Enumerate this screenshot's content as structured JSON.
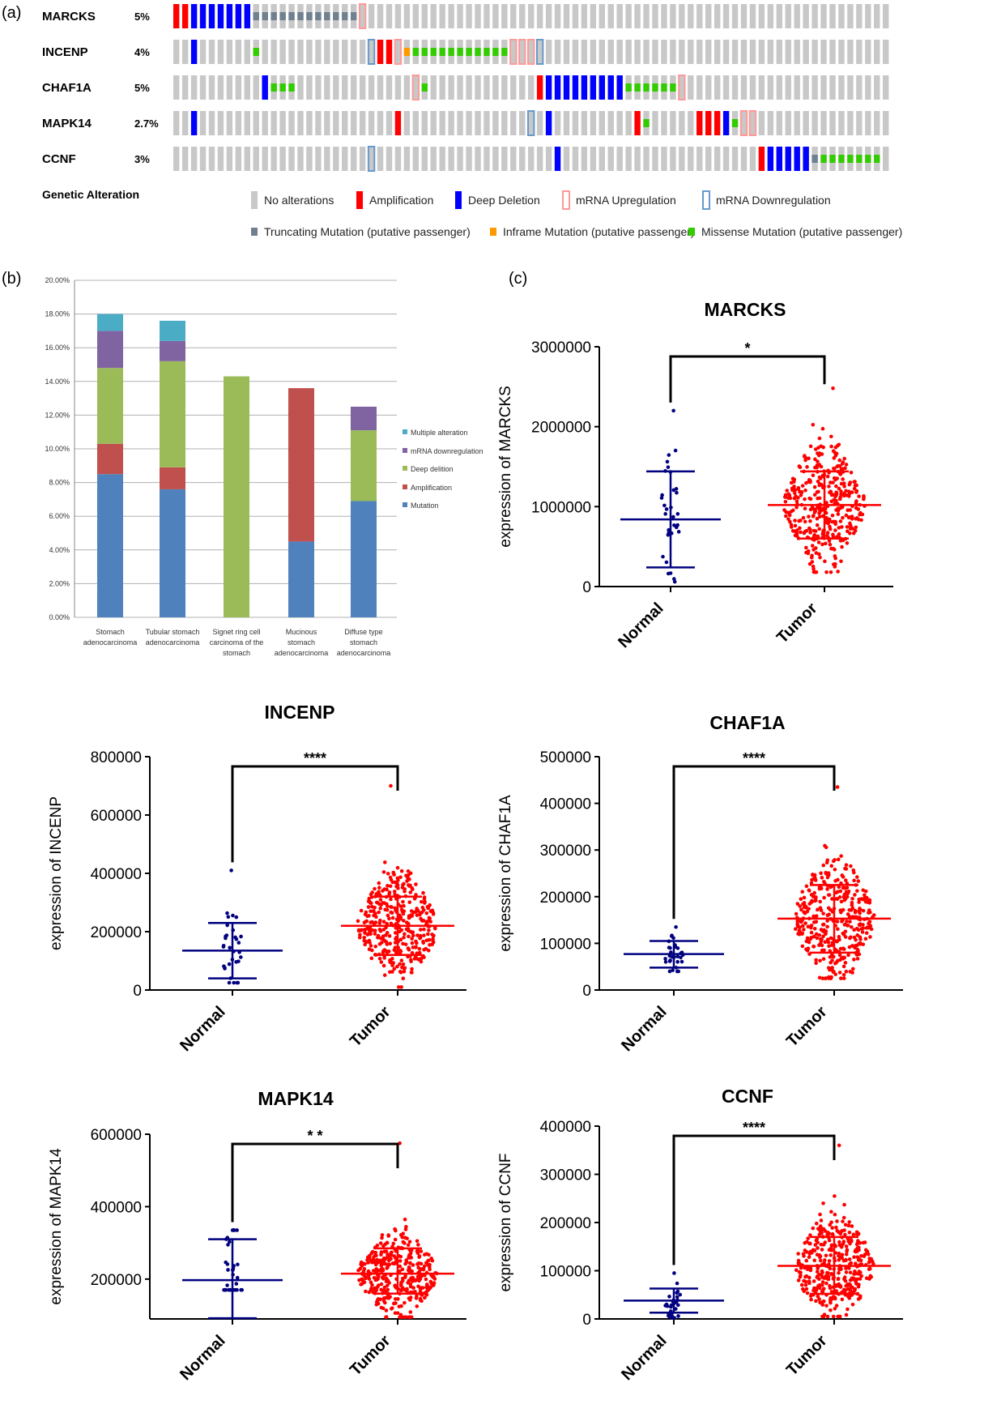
{
  "panel_a": {
    "label": "(a)",
    "genes": [
      {
        "name": "MARCKS",
        "pct": "5%"
      },
      {
        "name": "INCENP",
        "pct": "4%"
      },
      {
        "name": "CHAF1A",
        "pct": "5%"
      },
      {
        "name": "MAPK14",
        "pct": "2.7%"
      },
      {
        "name": "CCNF",
        "pct": "3%"
      }
    ],
    "legend_title": "Genetic Alteration",
    "legend": [
      {
        "key": "none",
        "label": "No alterations"
      },
      {
        "key": "amp",
        "label": "Amplification"
      },
      {
        "key": "del",
        "label": "Deep Deletion"
      },
      {
        "key": "up",
        "label": "mRNA Upregulation"
      },
      {
        "key": "down",
        "label": "mRNA Downregulation"
      },
      {
        "key": "trunc",
        "label": "Truncating Mutation (putative passenger)"
      },
      {
        "key": "inframe",
        "label": "Inframe Mutation (putative passenger)"
      },
      {
        "key": "missense",
        "label": "Missense Mutation (putative passenger)"
      }
    ],
    "colors": {
      "none": "#c8c8c8",
      "amp": "#ff0000",
      "del": "#0000ff",
      "up": "#ff9999",
      "down": "#6699cc",
      "trunc": "#708090",
      "inframe": "#ff9900",
      "missense": "#33cc00"
    },
    "tracks": [
      [
        [
          0,
          "amp"
        ],
        [
          1,
          "amp"
        ],
        [
          2,
          "del"
        ],
        [
          3,
          "del"
        ],
        [
          4,
          "del"
        ],
        [
          5,
          "del"
        ],
        [
          6,
          "del"
        ],
        [
          7,
          "del"
        ],
        [
          8,
          "del"
        ],
        [
          9,
          "trunc"
        ],
        [
          10,
          "trunc"
        ],
        [
          11,
          "trunc"
        ],
        [
          12,
          "trunc"
        ],
        [
          13,
          "trunc"
        ],
        [
          14,
          "trunc"
        ],
        [
          15,
          "trunc"
        ],
        [
          16,
          "trunc"
        ],
        [
          17,
          "trunc"
        ],
        [
          18,
          "trunc"
        ],
        [
          19,
          "trunc"
        ],
        [
          20,
          "trunc"
        ],
        [
          21,
          "up"
        ]
      ],
      [
        [
          2,
          "del"
        ],
        [
          9,
          "missense"
        ],
        [
          22,
          "down"
        ],
        [
          23,
          "amp"
        ],
        [
          24,
          "amp"
        ],
        [
          25,
          "up"
        ],
        [
          26,
          "inframe"
        ],
        [
          27,
          "missense"
        ],
        [
          28,
          "missense"
        ],
        [
          29,
          "missense"
        ],
        [
          30,
          "missense"
        ],
        [
          31,
          "missense"
        ],
        [
          32,
          "missense"
        ],
        [
          33,
          "missense"
        ],
        [
          34,
          "missense"
        ],
        [
          35,
          "missense"
        ],
        [
          36,
          "missense"
        ],
        [
          37,
          "missense"
        ],
        [
          38,
          "up"
        ],
        [
          39,
          "up"
        ],
        [
          40,
          "up"
        ],
        [
          41,
          "down"
        ]
      ],
      [
        [
          10,
          "del"
        ],
        [
          11,
          "missense"
        ],
        [
          12,
          "missense"
        ],
        [
          13,
          "missense"
        ],
        [
          27,
          "up"
        ],
        [
          28,
          "missense"
        ],
        [
          41,
          "amp"
        ],
        [
          42,
          "del"
        ],
        [
          43,
          "del"
        ],
        [
          44,
          "del"
        ],
        [
          45,
          "del"
        ],
        [
          46,
          "del"
        ],
        [
          47,
          "del"
        ],
        [
          48,
          "del"
        ],
        [
          49,
          "del"
        ],
        [
          50,
          "del"
        ],
        [
          51,
          "missense"
        ],
        [
          52,
          "missense"
        ],
        [
          53,
          "missense"
        ],
        [
          54,
          "missense"
        ],
        [
          55,
          "missense"
        ],
        [
          56,
          "missense"
        ],
        [
          57,
          "up"
        ]
      ],
      [
        [
          2,
          "del"
        ],
        [
          25,
          "amp"
        ],
        [
          40,
          "down"
        ],
        [
          42,
          "del"
        ],
        [
          52,
          "amp"
        ],
        [
          53,
          "missense"
        ],
        [
          59,
          "amp"
        ],
        [
          60,
          "amp"
        ],
        [
          61,
          "amp"
        ],
        [
          62,
          "del"
        ],
        [
          63,
          "missense"
        ],
        [
          64,
          "up"
        ],
        [
          65,
          "up"
        ]
      ],
      [
        [
          22,
          "down"
        ],
        [
          43,
          "del"
        ],
        [
          66,
          "amp"
        ],
        [
          67,
          "del"
        ],
        [
          68,
          "del"
        ],
        [
          69,
          "del"
        ],
        [
          70,
          "del"
        ],
        [
          71,
          "del"
        ],
        [
          72,
          "trunc"
        ],
        [
          73,
          "missense"
        ],
        [
          74,
          "missense"
        ],
        [
          75,
          "missense"
        ],
        [
          76,
          "missense"
        ],
        [
          77,
          "missense"
        ],
        [
          78,
          "missense"
        ],
        [
          79,
          "missense"
        ]
      ]
    ]
  },
  "panel_b": {
    "label": "(b)",
    "legend": [
      "Multiple alteration",
      "mRNA downregulation",
      "Deep delition",
      "Amplification",
      "Mutation"
    ]
  },
  "panel_c": {
    "label": "(c)"
  },
  "chart_data": [
    {
      "type": "bar",
      "stacked": true,
      "categories": [
        [
          "Stomach",
          "adenocarcinoma"
        ],
        [
          "Tubular stomach",
          "adenocarcinoma"
        ],
        [
          "Signet ring cell",
          "carcinoma of the",
          "stomach"
        ],
        [
          "Mucinous",
          "stomach",
          "adenocarcinoma"
        ],
        [
          "Diffuse type",
          "stomach",
          "adenocarcinoma"
        ]
      ],
      "series": [
        {
          "name": "Mutation",
          "color": "#4f81bd",
          "values": [
            8.5,
            7.6,
            0,
            4.5,
            6.9
          ]
        },
        {
          "name": "Amplification",
          "color": "#c0504d",
          "values": [
            1.8,
            1.3,
            0,
            9.1,
            0
          ]
        },
        {
          "name": "Deep delition",
          "color": "#9bbb59",
          "values": [
            4.5,
            6.3,
            14.3,
            0,
            4.2
          ]
        },
        {
          "name": "mRNA downregulation",
          "color": "#8064a2",
          "values": [
            2.2,
            1.2,
            0,
            0,
            1.4
          ]
        },
        {
          "name": "Multiple alteration",
          "color": "#4bacc6",
          "values": [
            1.0,
            1.2,
            0,
            0,
            0
          ]
        }
      ],
      "ylim": [
        0,
        20
      ],
      "yticks": [
        "0.00%",
        "2.00%",
        "4.00%",
        "6.00%",
        "8.00%",
        "10.00%",
        "12.00%",
        "14.00%",
        "16.00%",
        "18.00%",
        "20.00%"
      ],
      "grid": true,
      "legend_position": "right"
    },
    {
      "type": "scatter",
      "title": "MARCKS",
      "ylabel": "expression of MARCKS",
      "categories": [
        "Normal",
        "Tumor"
      ],
      "yticks": [
        "0",
        "1000000",
        "2000000",
        "3000000"
      ],
      "ylim": [
        0,
        3000000
      ],
      "significance": "*",
      "groups": [
        {
          "name": "Normal",
          "n": 32,
          "mean": 840000,
          "sd_low": 240000,
          "sd_high": 1440000,
          "min": 60000,
          "max": 2200000
        },
        {
          "name": "Tumor",
          "n": 375,
          "mean": 1020000,
          "sd_low": 600000,
          "sd_high": 1440000,
          "min": 180000,
          "max": 2480000
        }
      ]
    },
    {
      "type": "scatter",
      "title": "INCENP",
      "ylabel": "expression of INCENP",
      "categories": [
        "Normal",
        "Tumor"
      ],
      "yticks": [
        "0",
        "200000",
        "400000",
        "600000",
        "800000"
      ],
      "ylim": [
        0,
        800000
      ],
      "significance": "****",
      "groups": [
        {
          "name": "Normal",
          "n": 32,
          "mean": 135000,
          "sd_low": 40000,
          "sd_high": 230000,
          "min": 25000,
          "max": 410000
        },
        {
          "name": "Tumor",
          "n": 375,
          "mean": 220000,
          "sd_low": 120000,
          "sd_high": 320000,
          "min": 10000,
          "max": 700000
        }
      ]
    },
    {
      "type": "scatter",
      "title": "CHAF1A",
      "ylabel": "expression of CHAF1A",
      "categories": [
        "Normal",
        "Tumor"
      ],
      "yticks": [
        "0",
        "100000",
        "200000",
        "300000",
        "400000",
        "500000"
      ],
      "ylim": [
        0,
        500000
      ],
      "significance": "****",
      "groups": [
        {
          "name": "Normal",
          "n": 32,
          "mean": 77000,
          "sd_low": 48000,
          "sd_high": 105000,
          "min": 40000,
          "max": 135000
        },
        {
          "name": "Tumor",
          "n": 375,
          "mean": 153000,
          "sd_low": 80000,
          "sd_high": 225000,
          "min": 25000,
          "max": 435000
        }
      ]
    },
    {
      "type": "scatter",
      "title": "MAPK14",
      "ylabel": "expression of MAPK14",
      "categories": [
        "Normal",
        "Tumor"
      ],
      "yticks": [
        "200000",
        "400000",
        "600000"
      ],
      "ylim": [
        90000,
        600000
      ],
      "significance": "* *",
      "groups": [
        {
          "name": "Normal",
          "n": 32,
          "mean": 197000,
          "sd_low": 92000,
          "sd_high": 310000,
          "min": 170000,
          "max": 335000
        },
        {
          "name": "Tumor",
          "n": 375,
          "mean": 215000,
          "sd_low": 160000,
          "sd_high": 285000,
          "min": 95000,
          "max": 575000
        }
      ]
    },
    {
      "type": "scatter",
      "title": "CCNF",
      "ylabel": "expression of CCNF",
      "categories": [
        "Normal",
        "Tumor"
      ],
      "yticks": [
        "0",
        "100000",
        "200000",
        "300000",
        "400000"
      ],
      "ylim": [
        0,
        400000
      ],
      "significance": "****",
      "groups": [
        {
          "name": "Normal",
          "n": 32,
          "mean": 38000,
          "sd_low": 13000,
          "sd_high": 63000,
          "min": 2000,
          "max": 95000
        },
        {
          "name": "Tumor",
          "n": 375,
          "mean": 110000,
          "sd_low": 52000,
          "sd_high": 170000,
          "min": 5000,
          "max": 360000
        }
      ]
    }
  ]
}
